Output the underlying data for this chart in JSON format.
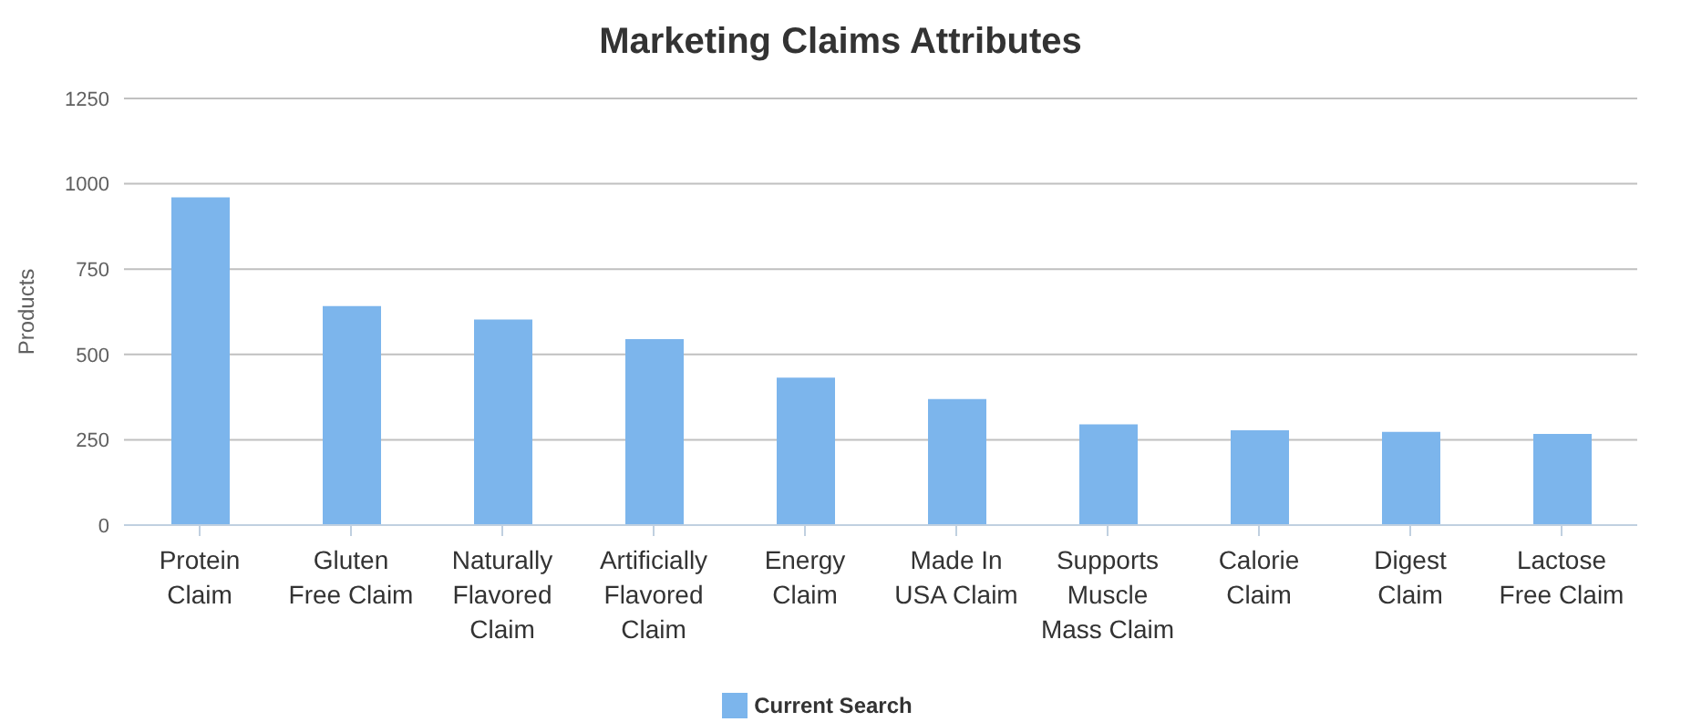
{
  "chart_data": {
    "type": "bar",
    "title": "Marketing Claims Attributes",
    "ylabel": "Products",
    "categories": [
      "Protein Claim",
      "Gluten Free Claim",
      "Naturally Flavored Claim",
      "Artificially Flavored Claim",
      "Energy Claim",
      "Made In USA Claim",
      "Supports Muscle Mass Claim",
      "Calorie Claim",
      "Digest Claim",
      "Lactose Free Claim"
    ],
    "series": [
      {
        "name": "Current Search",
        "color": "#7cb5ec",
        "values": [
          960,
          642,
          602,
          545,
          432,
          369,
          295,
          278,
          273,
          267
        ]
      }
    ],
    "ylim": [
      0,
      1250
    ],
    "yticks": [
      0,
      250,
      500,
      750,
      1000,
      1250
    ],
    "grid": "y",
    "legend": "bottom"
  }
}
